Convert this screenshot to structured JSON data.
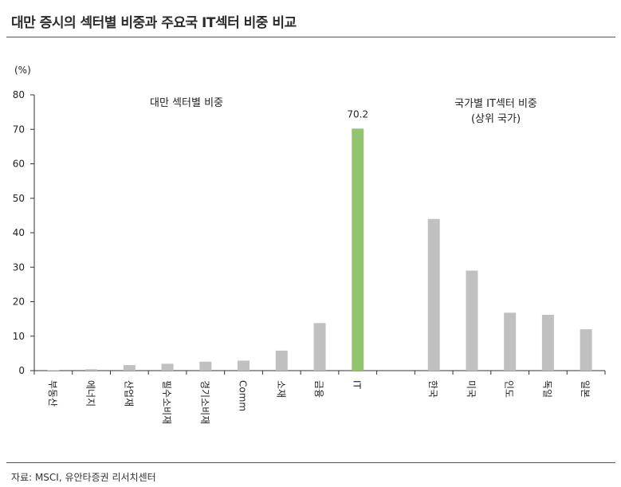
{
  "title": "대만 증시의 섹터별 비중과 주요국 IT섹터 비중 비교",
  "source": "자료: MSCI, 유안타증권 리서치센터",
  "colors": {
    "bar": "#c0c0c0",
    "highlight": "#92c46e",
    "axis": "#333333"
  },
  "chart_data": {
    "type": "bar",
    "unit_label": "(%)",
    "ylim": [
      0,
      80
    ],
    "yticks": [
      0,
      10,
      20,
      30,
      40,
      50,
      60,
      70,
      80
    ],
    "grid": false,
    "group_labels": [
      "대만 섹터별 비중",
      "국가별 IT섹터 비중\n(상위 국가)"
    ],
    "categories": [
      "부동산",
      "에너지",
      "산업재",
      "필수소비재",
      "경기소비재",
      "Comm",
      "소재",
      "금융",
      "IT",
      "",
      "한국",
      "미국",
      "인도",
      "독일",
      "일본"
    ],
    "values": [
      0.1,
      0.4,
      1.6,
      2.0,
      2.6,
      2.9,
      5.8,
      13.8,
      70.2,
      null,
      44.0,
      29.0,
      16.8,
      16.2,
      12.0
    ],
    "highlight_index": 8,
    "data_labels": {
      "8": "70.2"
    }
  }
}
